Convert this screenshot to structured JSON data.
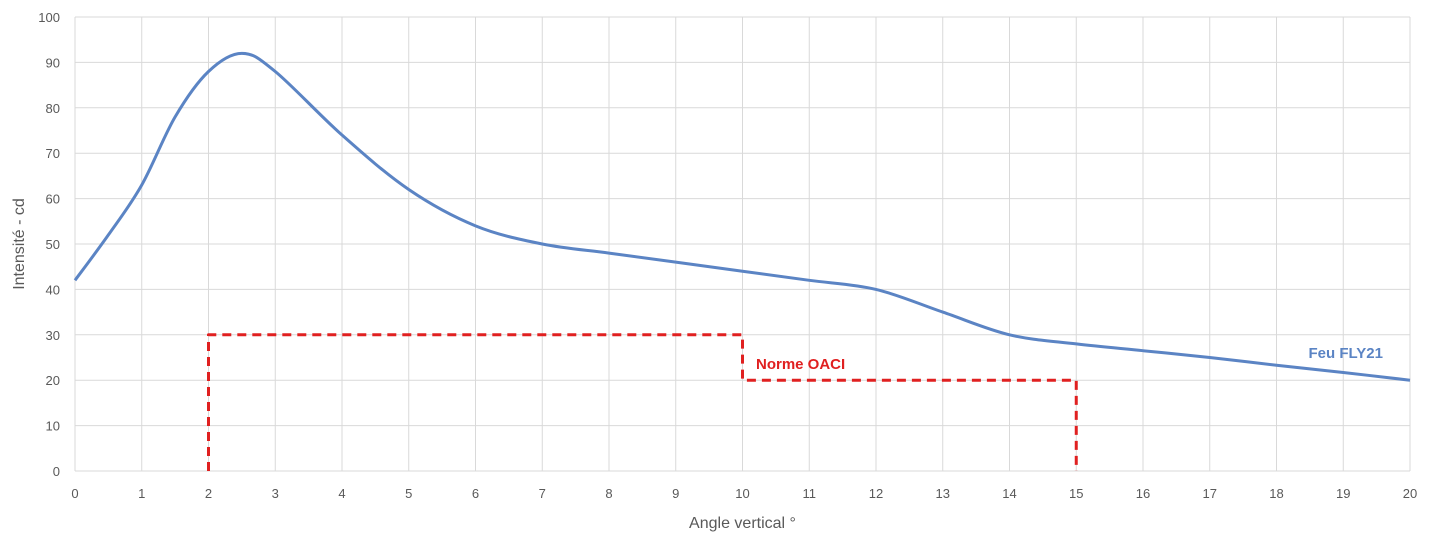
{
  "chart_data": {
    "type": "line",
    "title": "",
    "xlabel": "Angle vertical °",
    "ylabel": "Intensité - cd",
    "xlim": [
      0,
      20
    ],
    "ylim": [
      0,
      100
    ],
    "xticks": [
      0,
      1,
      2,
      3,
      4,
      5,
      6,
      7,
      8,
      9,
      10,
      11,
      12,
      13,
      14,
      15,
      16,
      17,
      18,
      19,
      20
    ],
    "yticks": [
      0,
      10,
      20,
      30,
      40,
      50,
      60,
      70,
      80,
      90,
      100
    ],
    "grid": true,
    "series": [
      {
        "name": "Feu FLY21",
        "color": "#5b84c4",
        "style": "solid",
        "x": [
          0,
          0.5,
          1,
          1.5,
          2,
          2.5,
          3,
          4,
          5,
          6,
          7,
          8,
          9,
          10,
          11,
          12,
          13,
          14,
          15,
          16,
          17,
          18,
          19,
          20
        ],
        "y": [
          42,
          52,
          63,
          78,
          88,
          92,
          88,
          74,
          62,
          54,
          50,
          48,
          46,
          44,
          42,
          40,
          35,
          30,
          28,
          26.5,
          25,
          23.3,
          21.7,
          20
        ]
      },
      {
        "name": "Norme OACI",
        "color": "#e02020",
        "style": "dashed",
        "x": [
          2,
          2,
          10,
          10,
          15,
          15
        ],
        "y": [
          0,
          30,
          30,
          20,
          20,
          0
        ]
      }
    ]
  }
}
